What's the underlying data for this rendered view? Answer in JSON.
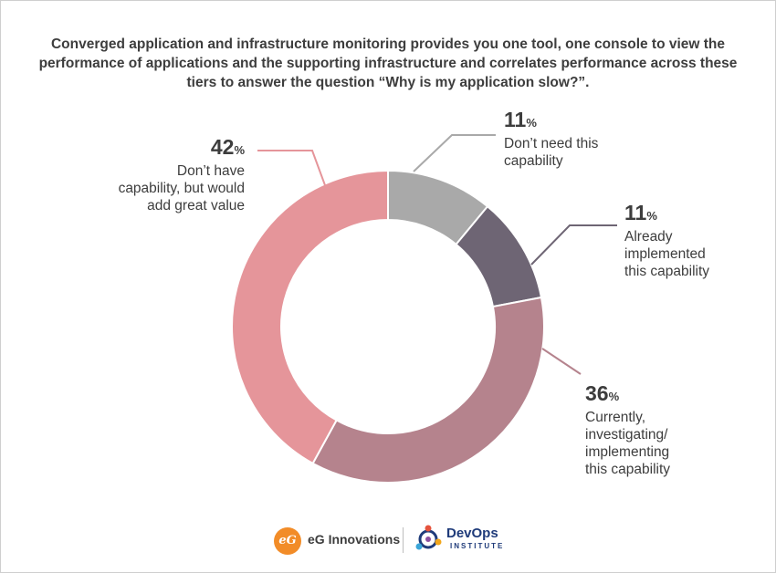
{
  "title": "Converged application and infrastructure monitoring provides you one tool, one console to view the performance of applications and the supporting infrastructure and correlates performance across these tiers to answer the question “Why is my application slow?”.",
  "chart_data": {
    "type": "pie",
    "donut": true,
    "title": "",
    "slices": [
      {
        "label": "Don’t need this capability",
        "value": 11,
        "pct_text": "11",
        "color": "#a9a9a9"
      },
      {
        "label": "Already implemented this capability",
        "value": 11,
        "pct_text": "11",
        "color": "#6e6574"
      },
      {
        "label": "Currently, investigating/ implementing this capability",
        "value": 36,
        "pct_text": "36",
        "color": "#b5838d"
      },
      {
        "label": "Don’t have capability, but would add great value",
        "value": 42,
        "pct_text": "42",
        "color": "#e5959a"
      }
    ],
    "unit": "%"
  },
  "callouts": {
    "left": {
      "pct": "42",
      "unit": "%",
      "label": "Don’t have\ncapability, but would\nadd great value"
    },
    "top": {
      "pct": "11",
      "unit": "%",
      "label": "Don’t need this\ncapability"
    },
    "right": {
      "pct": "11",
      "unit": "%",
      "label": "Already\nimplemented\nthis capability"
    },
    "bottom": {
      "pct": "36",
      "unit": "%",
      "label": "Currently,\ninvestigating/\nimplementing\nthis capability"
    }
  },
  "footer": {
    "eg_logo_mark": "eG",
    "eg_name": "eG Innovations",
    "devops_name": "DevOps",
    "devops_sub": "INSTITUTE"
  }
}
